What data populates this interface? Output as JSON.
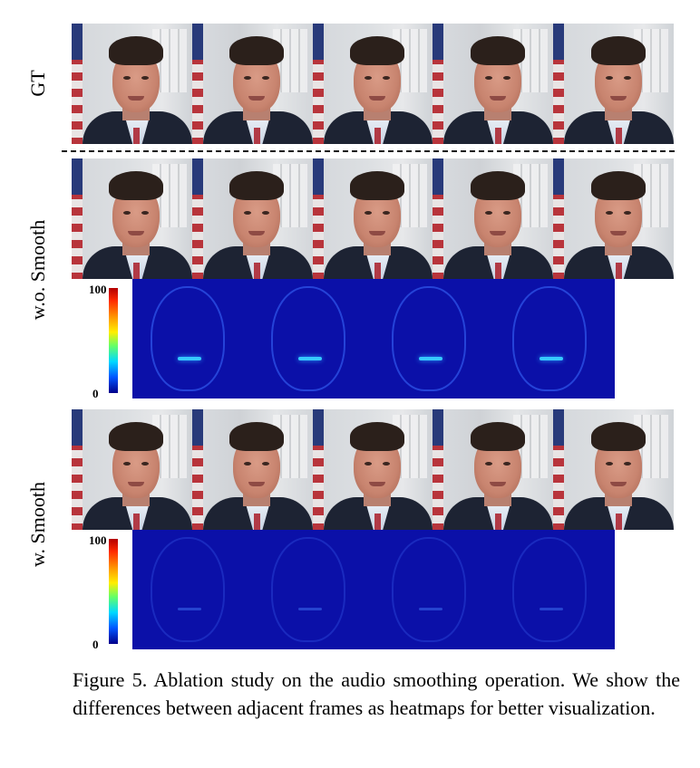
{
  "rows": {
    "gt_label": "GT",
    "wo_smooth_label": "w.o. Smooth",
    "w_smooth_label": "w. Smooth"
  },
  "strips": {
    "gt": {
      "frame_count": 5
    },
    "wo_smooth": {
      "frame_count": 5
    },
    "w_smooth": {
      "frame_count": 5
    }
  },
  "heatmaps": {
    "wo_smooth": {
      "panel_count": 4,
      "intensity": "higher"
    },
    "w_smooth": {
      "panel_count": 4,
      "intensity": "lower"
    }
  },
  "colorbar": {
    "max_label": "100",
    "min_label": "0",
    "colormap": "jet",
    "colors": [
      "#b30000",
      "#ff2a00",
      "#ff9900",
      "#ffee00",
      "#66ff66",
      "#00d9ff",
      "#0055ff",
      "#00008a"
    ]
  },
  "caption": {
    "text": "Figure 5.  Ablation study on the audio smoothing operation.  We show the differences between adjacent frames as heatmaps for better visualization."
  }
}
